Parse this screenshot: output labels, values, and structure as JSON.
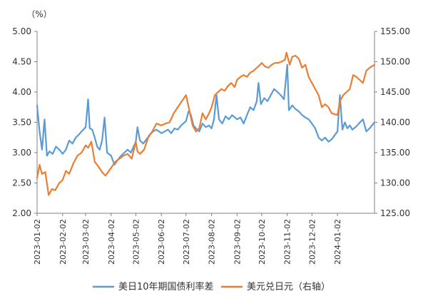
{
  "chart_data": {
    "type": "line",
    "unit_label": "（%）",
    "dual_axis": true,
    "y_left": {
      "min": 2.0,
      "max": 5.0,
      "step": 0.5,
      "ticks": [
        "2.00",
        "2.50",
        "3.00",
        "3.50",
        "4.00",
        "4.50",
        "5.00"
      ]
    },
    "y_right": {
      "min": 125,
      "max": 155,
      "step": 5,
      "ticks": [
        "125.00",
        "130.00",
        "135.00",
        "140.00",
        "145.00",
        "150.00",
        "155.00"
      ]
    },
    "x_ticks": [
      "2023-01-02",
      "2023-02-02",
      "2023-03-02",
      "2023-04-02",
      "2023-05-02",
      "2023-06-02",
      "2023-07-02",
      "2023-08-02",
      "2023-09-02",
      "2023-10-02",
      "2023-11-02",
      "2023-12-02",
      "2024-01-02"
    ],
    "x_range": [
      "2023-01-02",
      "2024-02-16"
    ],
    "grid": false,
    "legend_position": "bottom",
    "series": [
      {
        "name": "美日10年期国债利率差",
        "axis": "left",
        "color": "#5b9bd5",
        "points": [
          [
            "2023-01-02",
            3.78
          ],
          [
            "2023-01-05",
            3.35
          ],
          [
            "2023-01-08",
            3.05
          ],
          [
            "2023-01-11",
            3.55
          ],
          [
            "2023-01-14",
            2.95
          ],
          [
            "2023-01-17",
            3.02
          ],
          [
            "2023-01-21",
            2.98
          ],
          [
            "2023-01-25",
            3.1
          ],
          [
            "2023-01-29",
            3.05
          ],
          [
            "2023-02-02",
            2.98
          ],
          [
            "2023-02-06",
            3.05
          ],
          [
            "2023-02-10",
            3.2
          ],
          [
            "2023-02-14",
            3.15
          ],
          [
            "2023-02-18",
            3.25
          ],
          [
            "2023-02-22",
            3.3
          ],
          [
            "2023-02-25",
            3.35
          ],
          [
            "2023-03-02",
            3.42
          ],
          [
            "2023-03-05",
            3.88
          ],
          [
            "2023-03-07",
            3.4
          ],
          [
            "2023-03-10",
            3.38
          ],
          [
            "2023-03-13",
            3.25
          ],
          [
            "2023-03-16",
            3.1
          ],
          [
            "2023-03-19",
            3.05
          ],
          [
            "2023-03-22",
            3.2
          ],
          [
            "2023-03-25",
            3.58
          ],
          [
            "2023-03-28",
            3.0
          ],
          [
            "2023-04-02",
            2.95
          ],
          [
            "2023-04-06",
            2.8
          ],
          [
            "2023-04-10",
            2.88
          ],
          [
            "2023-04-14",
            2.95
          ],
          [
            "2023-04-18",
            3.0
          ],
          [
            "2023-04-22",
            3.05
          ],
          [
            "2023-04-26",
            3.0
          ],
          [
            "2023-05-02",
            3.18
          ],
          [
            "2023-05-04",
            3.42
          ],
          [
            "2023-05-07",
            3.2
          ],
          [
            "2023-05-11",
            3.15
          ],
          [
            "2023-05-15",
            3.22
          ],
          [
            "2023-05-19",
            3.3
          ],
          [
            "2023-05-23",
            3.35
          ],
          [
            "2023-05-27",
            3.38
          ],
          [
            "2023-06-02",
            3.32
          ],
          [
            "2023-06-06",
            3.35
          ],
          [
            "2023-06-10",
            3.38
          ],
          [
            "2023-06-14",
            3.32
          ],
          [
            "2023-06-18",
            3.4
          ],
          [
            "2023-06-22",
            3.38
          ],
          [
            "2023-06-26",
            3.45
          ],
          [
            "2023-07-02",
            3.52
          ],
          [
            "2023-07-05",
            3.68
          ],
          [
            "2023-07-08",
            3.62
          ],
          [
            "2023-07-11",
            3.45
          ],
          [
            "2023-07-14",
            3.4
          ],
          [
            "2023-07-18",
            3.35
          ],
          [
            "2023-07-22",
            3.48
          ],
          [
            "2023-07-26",
            3.42
          ],
          [
            "2023-07-30",
            3.45
          ],
          [
            "2023-08-02",
            3.4
          ],
          [
            "2023-08-05",
            3.55
          ],
          [
            "2023-08-08",
            3.95
          ],
          [
            "2023-08-11",
            3.55
          ],
          [
            "2023-08-15",
            3.48
          ],
          [
            "2023-08-19",
            3.6
          ],
          [
            "2023-08-23",
            3.55
          ],
          [
            "2023-08-27",
            3.62
          ],
          [
            "2023-09-02",
            3.55
          ],
          [
            "2023-09-06",
            3.58
          ],
          [
            "2023-09-10",
            3.48
          ],
          [
            "2023-09-14",
            3.62
          ],
          [
            "2023-09-18",
            3.75
          ],
          [
            "2023-09-22",
            3.7
          ],
          [
            "2023-09-26",
            3.85
          ],
          [
            "2023-09-28",
            4.15
          ],
          [
            "2023-10-01",
            3.8
          ],
          [
            "2023-10-05",
            3.9
          ],
          [
            "2023-10-09",
            3.85
          ],
          [
            "2023-10-13",
            3.95
          ],
          [
            "2023-10-17",
            4.05
          ],
          [
            "2023-10-21",
            4.0
          ],
          [
            "2023-10-25",
            3.95
          ],
          [
            "2023-10-29",
            3.88
          ],
          [
            "2023-11-02",
            4.45
          ],
          [
            "2023-11-04",
            3.7
          ],
          [
            "2023-11-08",
            3.78
          ],
          [
            "2023-11-12",
            3.72
          ],
          [
            "2023-11-16",
            3.68
          ],
          [
            "2023-11-20",
            3.62
          ],
          [
            "2023-11-24",
            3.58
          ],
          [
            "2023-11-28",
            3.55
          ],
          [
            "2023-12-02",
            3.48
          ],
          [
            "2023-12-06",
            3.4
          ],
          [
            "2023-12-10",
            3.25
          ],
          [
            "2023-12-14",
            3.2
          ],
          [
            "2023-12-18",
            3.25
          ],
          [
            "2023-12-22",
            3.18
          ],
          [
            "2023-12-26",
            3.22
          ],
          [
            "2024-01-02",
            3.35
          ],
          [
            "2024-01-05",
            3.95
          ],
          [
            "2024-01-08",
            3.38
          ],
          [
            "2024-01-11",
            3.5
          ],
          [
            "2024-01-14",
            3.4
          ],
          [
            "2024-01-17",
            3.45
          ],
          [
            "2024-01-20",
            3.38
          ],
          [
            "2024-01-24",
            3.42
          ],
          [
            "2024-01-28",
            3.48
          ],
          [
            "2024-02-02",
            3.55
          ],
          [
            "2024-02-06",
            3.35
          ],
          [
            "2024-02-10",
            3.4
          ],
          [
            "2024-02-16",
            3.5
          ]
        ]
      },
      {
        "name": "美元兑日元（右轴）",
        "axis": "right",
        "color": "#ed7d31",
        "points": [
          [
            "2023-01-02",
            130.8
          ],
          [
            "2023-01-05",
            133.0
          ],
          [
            "2023-01-08",
            131.5
          ],
          [
            "2023-01-12",
            131.8
          ],
          [
            "2023-01-16",
            128.0
          ],
          [
            "2023-01-20",
            129.0
          ],
          [
            "2023-01-24",
            128.8
          ],
          [
            "2023-01-29",
            130.0
          ],
          [
            "2023-02-02",
            130.5
          ],
          [
            "2023-02-06",
            132.0
          ],
          [
            "2023-02-10",
            131.5
          ],
          [
            "2023-02-15",
            133.2
          ],
          [
            "2023-02-20",
            134.5
          ],
          [
            "2023-02-25",
            135.0
          ],
          [
            "2023-03-02",
            136.2
          ],
          [
            "2023-03-05",
            135.8
          ],
          [
            "2023-03-09",
            136.8
          ],
          [
            "2023-03-13",
            133.5
          ],
          [
            "2023-03-17",
            132.8
          ],
          [
            "2023-03-22",
            131.8
          ],
          [
            "2023-03-26",
            131.2
          ],
          [
            "2023-04-02",
            132.5
          ],
          [
            "2023-04-07",
            133.5
          ],
          [
            "2023-04-12",
            134.0
          ],
          [
            "2023-04-17",
            134.5
          ],
          [
            "2023-04-22",
            134.8
          ],
          [
            "2023-04-27",
            134.0
          ],
          [
            "2023-05-02",
            136.8
          ],
          [
            "2023-05-04",
            135.2
          ],
          [
            "2023-05-07",
            134.8
          ],
          [
            "2023-05-12",
            135.5
          ],
          [
            "2023-05-17",
            137.5
          ],
          [
            "2023-05-22",
            138.5
          ],
          [
            "2023-05-27",
            139.8
          ],
          [
            "2023-06-02",
            139.5
          ],
          [
            "2023-06-07",
            139.8
          ],
          [
            "2023-06-12",
            140.0
          ],
          [
            "2023-06-17",
            141.5
          ],
          [
            "2023-06-22",
            142.5
          ],
          [
            "2023-06-27",
            143.5
          ],
          [
            "2023-07-02",
            144.5
          ],
          [
            "2023-07-06",
            142.0
          ],
          [
            "2023-07-10",
            139.5
          ],
          [
            "2023-07-14",
            138.5
          ],
          [
            "2023-07-18",
            139.0
          ],
          [
            "2023-07-22",
            141.5
          ],
          [
            "2023-07-26",
            140.5
          ],
          [
            "2023-07-30",
            141.5
          ],
          [
            "2023-08-02",
            142.5
          ],
          [
            "2023-08-06",
            144.5
          ],
          [
            "2023-08-10",
            145.0
          ],
          [
            "2023-08-14",
            145.5
          ],
          [
            "2023-08-18",
            145.2
          ],
          [
            "2023-08-22",
            146.0
          ],
          [
            "2023-08-26",
            146.5
          ],
          [
            "2023-08-30",
            145.8
          ],
          [
            "2023-09-02",
            147.0
          ],
          [
            "2023-09-06",
            147.5
          ],
          [
            "2023-09-10",
            147.8
          ],
          [
            "2023-09-14",
            147.5
          ],
          [
            "2023-09-18",
            148.2
          ],
          [
            "2023-09-22",
            148.5
          ],
          [
            "2023-09-26",
            149.0
          ],
          [
            "2023-09-30",
            149.5
          ],
          [
            "2023-10-02",
            149.8
          ],
          [
            "2023-10-06",
            149.2
          ],
          [
            "2023-10-10",
            149.0
          ],
          [
            "2023-10-14",
            149.5
          ],
          [
            "2023-10-18",
            149.8
          ],
          [
            "2023-10-22",
            149.8
          ],
          [
            "2023-10-26",
            150.0
          ],
          [
            "2023-10-30",
            150.3
          ],
          [
            "2023-11-01",
            151.5
          ],
          [
            "2023-11-05",
            149.5
          ],
          [
            "2023-11-08",
            150.8
          ],
          [
            "2023-11-12",
            151.0
          ],
          [
            "2023-11-16",
            150.5
          ],
          [
            "2023-11-20",
            149.0
          ],
          [
            "2023-11-24",
            149.5
          ],
          [
            "2023-11-28",
            147.5
          ],
          [
            "2023-12-02",
            146.5
          ],
          [
            "2023-12-06",
            145.5
          ],
          [
            "2023-12-10",
            144.5
          ],
          [
            "2023-12-14",
            142.5
          ],
          [
            "2023-12-18",
            143.0
          ],
          [
            "2023-12-22",
            142.5
          ],
          [
            "2023-12-26",
            141.5
          ],
          [
            "2024-01-02",
            141.2
          ],
          [
            "2024-01-05",
            143.5
          ],
          [
            "2024-01-09",
            144.5
          ],
          [
            "2024-01-13",
            145.0
          ],
          [
            "2024-01-17",
            145.5
          ],
          [
            "2024-01-21",
            147.8
          ],
          [
            "2024-01-25",
            147.5
          ],
          [
            "2024-01-29",
            147.0
          ],
          [
            "2024-02-02",
            146.5
          ],
          [
            "2024-02-06",
            148.5
          ],
          [
            "2024-02-10",
            149.0
          ],
          [
            "2024-02-16",
            149.5
          ]
        ]
      }
    ]
  }
}
